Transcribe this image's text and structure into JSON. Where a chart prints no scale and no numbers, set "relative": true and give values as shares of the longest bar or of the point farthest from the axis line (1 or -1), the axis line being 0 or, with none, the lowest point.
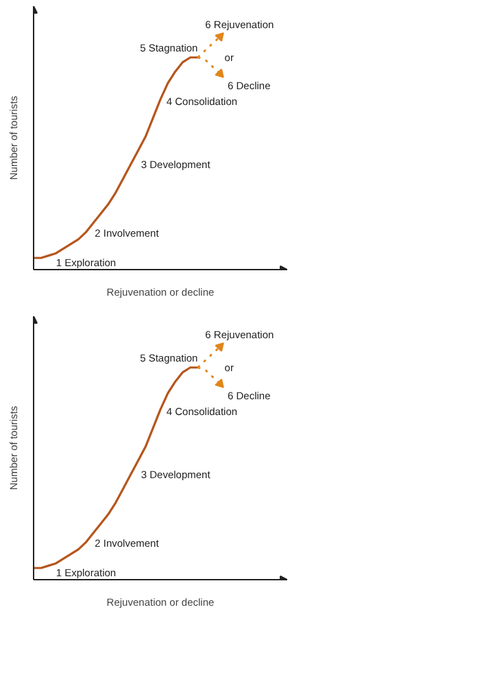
{
  "chart_data": [
    {
      "type": "line",
      "relative": true,
      "xlabel": "Rejuvenation or decline",
      "ylabel": "Number of tourists",
      "categories": [
        null,
        null,
        null,
        null,
        null,
        null,
        null,
        null,
        null,
        null,
        null,
        null,
        null,
        null,
        null,
        null,
        null,
        null,
        null,
        null,
        null,
        null,
        null,
        null,
        null,
        null
      ],
      "series": [
        {
          "color": "#b5561c",
          "line_style": "solid",
          "values": [
            0.05,
            0.05,
            0.06,
            0.07,
            0.09,
            0.11,
            0.13,
            0.16,
            0.2,
            0.24,
            0.28,
            0.33,
            0.39,
            0.45,
            0.51,
            0.57,
            0.65,
            0.73,
            0.8,
            0.85,
            0.89,
            0.91,
            0.91,
            null,
            null,
            null
          ]
        },
        {
          "color": "#e0861a",
          "line_style": "dotted",
          "values": [
            null,
            null,
            null,
            null,
            null,
            null,
            null,
            null,
            null,
            null,
            null,
            null,
            null,
            null,
            null,
            null,
            null,
            null,
            null,
            null,
            null,
            null,
            0.91,
            0.94,
            0.97,
            1
          ]
        },
        {
          "color": "#e0861a",
          "line_style": "dotted",
          "values": [
            null,
            null,
            null,
            null,
            null,
            null,
            null,
            null,
            null,
            null,
            null,
            null,
            null,
            null,
            null,
            null,
            null,
            null,
            null,
            null,
            null,
            null,
            0.91,
            0.9,
            0.87,
            0.84
          ]
        }
      ],
      "annotations": [
        "1 Exploration",
        "2 Involvement",
        "3 Development",
        "4 Consolidation",
        "5 Stagnation",
        "6 Rejuvenation",
        "or",
        "6 Decline"
      ]
    },
    {
      "type": "line",
      "relative": true,
      "xlabel": "Rejuvenation or decline",
      "ylabel": "Number of tourists",
      "categories": [
        null,
        null,
        null,
        null,
        null,
        null,
        null,
        null,
        null,
        null,
        null,
        null,
        null,
        null,
        null,
        null,
        null,
        null,
        null,
        null,
        null,
        null,
        null,
        null,
        null,
        null
      ],
      "series": [
        {
          "color": "#b5561c",
          "line_style": "solid",
          "values": [
            0.05,
            0.05,
            0.06,
            0.07,
            0.09,
            0.11,
            0.13,
            0.16,
            0.2,
            0.24,
            0.28,
            0.33,
            0.39,
            0.45,
            0.51,
            0.57,
            0.65,
            0.73,
            0.8,
            0.85,
            0.89,
            0.91,
            0.91,
            null,
            null,
            null
          ]
        },
        {
          "color": "#e0861a",
          "line_style": "dotted",
          "values": [
            null,
            null,
            null,
            null,
            null,
            null,
            null,
            null,
            null,
            null,
            null,
            null,
            null,
            null,
            null,
            null,
            null,
            null,
            null,
            null,
            null,
            null,
            0.91,
            0.94,
            0.97,
            1
          ]
        },
        {
          "color": "#e0861a",
          "line_style": "dotted",
          "values": [
            null,
            null,
            null,
            null,
            null,
            null,
            null,
            null,
            null,
            null,
            null,
            null,
            null,
            null,
            null,
            null,
            null,
            null,
            null,
            null,
            null,
            null,
            0.91,
            0.9,
            0.87,
            0.84
          ]
        }
      ],
      "annotations": [
        "1 Exploration",
        "2 Involvement",
        "3 Development",
        "4 Consolidation",
        "5 Stagnation",
        "6 Rejuvenation",
        "or",
        "6 Decline"
      ]
    }
  ]
}
